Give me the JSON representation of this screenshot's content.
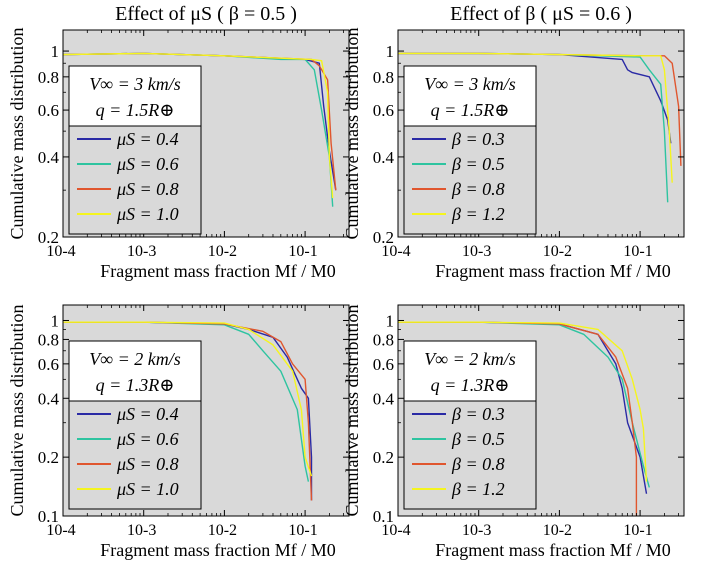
{
  "colors": {
    "panel_bg": "#d9d9d9",
    "series": [
      "#2a2aa5",
      "#2ec4a0",
      "#e0562e",
      "#f5f51e"
    ]
  },
  "chart_data": [
    {
      "type": "line",
      "title": "Effect of μS  ( β = 0.5 )",
      "xlabel": "Fragment mass fraction  Mf / M0",
      "ylabel": "Cumulative mass distribution",
      "xscale": "log",
      "yscale": "log",
      "xlim": [
        0.0001,
        0.35
      ],
      "ylim": [
        0.2,
        1.2
      ],
      "xticks": [
        "10-4",
        "10-3",
        "10-2",
        "10-1"
      ],
      "yticks": [
        "0.2",
        "0.4",
        "0.6",
        "0.8",
        "1"
      ],
      "ytick_values": [
        0.2,
        0.4,
        0.6,
        0.8,
        1
      ],
      "legend_loc": "left",
      "legend_head": [
        "V∞ = 3 km/s",
        "q = 1.5R⊕"
      ],
      "series": [
        {
          "name": "μS = 0.4",
          "x": [
            0.0001,
            0.001,
            0.01,
            0.1,
            0.15,
            0.17,
            0.2,
            0.24
          ],
          "y": [
            0.97,
            0.98,
            0.96,
            0.93,
            0.9,
            0.62,
            0.42,
            0.3
          ]
        },
        {
          "name": "μS = 0.6",
          "x": [
            0.0001,
            0.001,
            0.01,
            0.05,
            0.1,
            0.13,
            0.16,
            0.2,
            0.22
          ],
          "y": [
            0.97,
            0.98,
            0.96,
            0.93,
            0.93,
            0.85,
            0.6,
            0.4,
            0.26
          ]
        },
        {
          "name": "μS = 0.8",
          "x": [
            0.0001,
            0.001,
            0.01,
            0.12,
            0.15,
            0.19,
            0.21,
            0.24
          ],
          "y": [
            0.97,
            0.98,
            0.96,
            0.93,
            0.88,
            0.78,
            0.45,
            0.3
          ]
        },
        {
          "name": "μS = 1.0",
          "x": [
            0.0001,
            0.001,
            0.01,
            0.12,
            0.16,
            0.19,
            0.2,
            0.22
          ],
          "y": [
            0.97,
            0.98,
            0.96,
            0.93,
            0.92,
            0.7,
            0.4,
            0.28
          ]
        }
      ]
    },
    {
      "type": "line",
      "title": "Effect of β  ( μS = 0.6 )",
      "xlabel": "Fragment mass fraction  Mf / M0",
      "ylabel": "Cumulative mass distribution",
      "xscale": "log",
      "yscale": "log",
      "xlim": [
        0.0001,
        0.35
      ],
      "ylim": [
        0.2,
        1.2
      ],
      "xticks": [
        "10-4",
        "10-3",
        "10-2",
        "10-1"
      ],
      "yticks": [
        "0.2",
        "0.4",
        "0.6",
        "0.8",
        "1"
      ],
      "ytick_values": [
        0.2,
        0.4,
        0.6,
        0.8,
        1
      ],
      "legend_loc": "left",
      "legend_head": [
        "V∞ = 3 km/s",
        "q = 1.5R⊕"
      ],
      "series": [
        {
          "name": "β = 0.3",
          "x": [
            0.0001,
            0.001,
            0.01,
            0.06,
            0.07,
            0.08,
            0.13,
            0.18,
            0.22,
            0.24
          ],
          "y": [
            0.98,
            0.98,
            0.97,
            0.93,
            0.85,
            0.83,
            0.8,
            0.65,
            0.55,
            0.45
          ]
        },
        {
          "name": "β = 0.5",
          "x": [
            0.0001,
            0.001,
            0.01,
            0.1,
            0.13,
            0.18,
            0.2,
            0.22
          ],
          "y": [
            0.98,
            0.98,
            0.97,
            0.95,
            0.85,
            0.75,
            0.5,
            0.27
          ]
        },
        {
          "name": "β = 0.8",
          "x": [
            0.0001,
            0.001,
            0.01,
            0.12,
            0.2,
            0.25,
            0.3,
            0.32
          ],
          "y": [
            0.98,
            0.98,
            0.97,
            0.96,
            0.96,
            0.9,
            0.62,
            0.37
          ]
        },
        {
          "name": "β = 1.2",
          "x": [
            0.0001,
            0.001,
            0.01,
            0.1,
            0.18,
            0.2,
            0.23,
            0.25
          ],
          "y": [
            0.98,
            0.98,
            0.97,
            0.96,
            0.96,
            0.85,
            0.5,
            0.32
          ]
        }
      ]
    },
    {
      "type": "line",
      "title": "",
      "xlabel": "Fragment mass fraction  Mf / M0",
      "ylabel": "Cumulative mass distribution",
      "xscale": "log",
      "yscale": "log",
      "xlim": [
        0.0001,
        0.35
      ],
      "ylim": [
        0.1,
        1.2
      ],
      "xticks": [
        "10-4",
        "10-3",
        "10-2",
        "10-1"
      ],
      "yticks": [
        "0.1",
        "0.2",
        "0.4",
        "0.6",
        "0.8",
        "1"
      ],
      "ytick_values": [
        0.1,
        0.2,
        0.4,
        0.6,
        0.8,
        1
      ],
      "legend_loc": "left",
      "legend_head": [
        "V∞ = 2 km/s",
        "q = 1.3R⊕"
      ],
      "series": [
        {
          "name": "μS = 0.4",
          "x": [
            0.0001,
            0.001,
            0.01,
            0.02,
            0.04,
            0.06,
            0.09,
            0.11,
            0.12,
            0.12
          ],
          "y": [
            0.98,
            0.98,
            0.96,
            0.9,
            0.82,
            0.65,
            0.45,
            0.4,
            0.2,
            0.12
          ]
        },
        {
          "name": "μS = 0.6",
          "x": [
            0.0001,
            0.001,
            0.01,
            0.02,
            0.03,
            0.05,
            0.08,
            0.1,
            0.11
          ],
          "y": [
            0.98,
            0.98,
            0.95,
            0.85,
            0.7,
            0.55,
            0.35,
            0.18,
            0.15
          ]
        },
        {
          "name": "μS = 0.8",
          "x": [
            0.0001,
            0.001,
            0.01,
            0.03,
            0.05,
            0.07,
            0.1,
            0.11,
            0.12
          ],
          "y": [
            0.98,
            0.98,
            0.96,
            0.88,
            0.78,
            0.6,
            0.5,
            0.3,
            0.12
          ]
        },
        {
          "name": "μS = 1.0",
          "x": [
            0.0001,
            0.001,
            0.01,
            0.02,
            0.04,
            0.07,
            0.09,
            0.1,
            0.12
          ],
          "y": [
            0.98,
            0.98,
            0.97,
            0.9,
            0.75,
            0.55,
            0.35,
            0.2,
            0.16
          ]
        }
      ]
    },
    {
      "type": "line",
      "title": "",
      "xlabel": "Fragment mass fraction  Mf / M0",
      "ylabel": "Cumulative mass distribution",
      "xscale": "log",
      "yscale": "log",
      "xlim": [
        0.0001,
        0.35
      ],
      "ylim": [
        0.1,
        1.2
      ],
      "xticks": [
        "10-4",
        "10-3",
        "10-2",
        "10-1"
      ],
      "yticks": [
        "0.1",
        "0.2",
        "0.4",
        "0.6",
        "0.8",
        "1"
      ],
      "ytick_values": [
        0.1,
        0.2,
        0.4,
        0.6,
        0.8,
        1
      ],
      "legend_loc": "left",
      "legend_head": [
        "V∞ = 2 km/s",
        "q = 1.3R⊕"
      ],
      "series": [
        {
          "name": "β = 0.3",
          "x": [
            0.0001,
            0.001,
            0.01,
            0.03,
            0.05,
            0.06,
            0.07,
            0.1,
            0.12
          ],
          "y": [
            0.98,
            0.98,
            0.96,
            0.85,
            0.6,
            0.45,
            0.3,
            0.2,
            0.13
          ]
        },
        {
          "name": "β = 0.5",
          "x": [
            0.0001,
            0.001,
            0.01,
            0.02,
            0.04,
            0.06,
            0.08,
            0.11,
            0.13
          ],
          "y": [
            0.98,
            0.98,
            0.95,
            0.85,
            0.65,
            0.5,
            0.3,
            0.18,
            0.14
          ]
        },
        {
          "name": "β = 0.8",
          "x": [
            0.0001,
            0.001,
            0.01,
            0.03,
            0.05,
            0.07,
            0.08,
            0.09,
            0.09
          ],
          "y": [
            0.98,
            0.98,
            0.96,
            0.85,
            0.65,
            0.45,
            0.3,
            0.2,
            0.1
          ]
        },
        {
          "name": "β = 1.2",
          "x": [
            0.0001,
            0.001,
            0.01,
            0.03,
            0.06,
            0.08,
            0.1,
            0.11,
            0.12
          ],
          "y": [
            0.98,
            0.98,
            0.97,
            0.9,
            0.7,
            0.5,
            0.35,
            0.28,
            0.15
          ]
        }
      ]
    }
  ]
}
